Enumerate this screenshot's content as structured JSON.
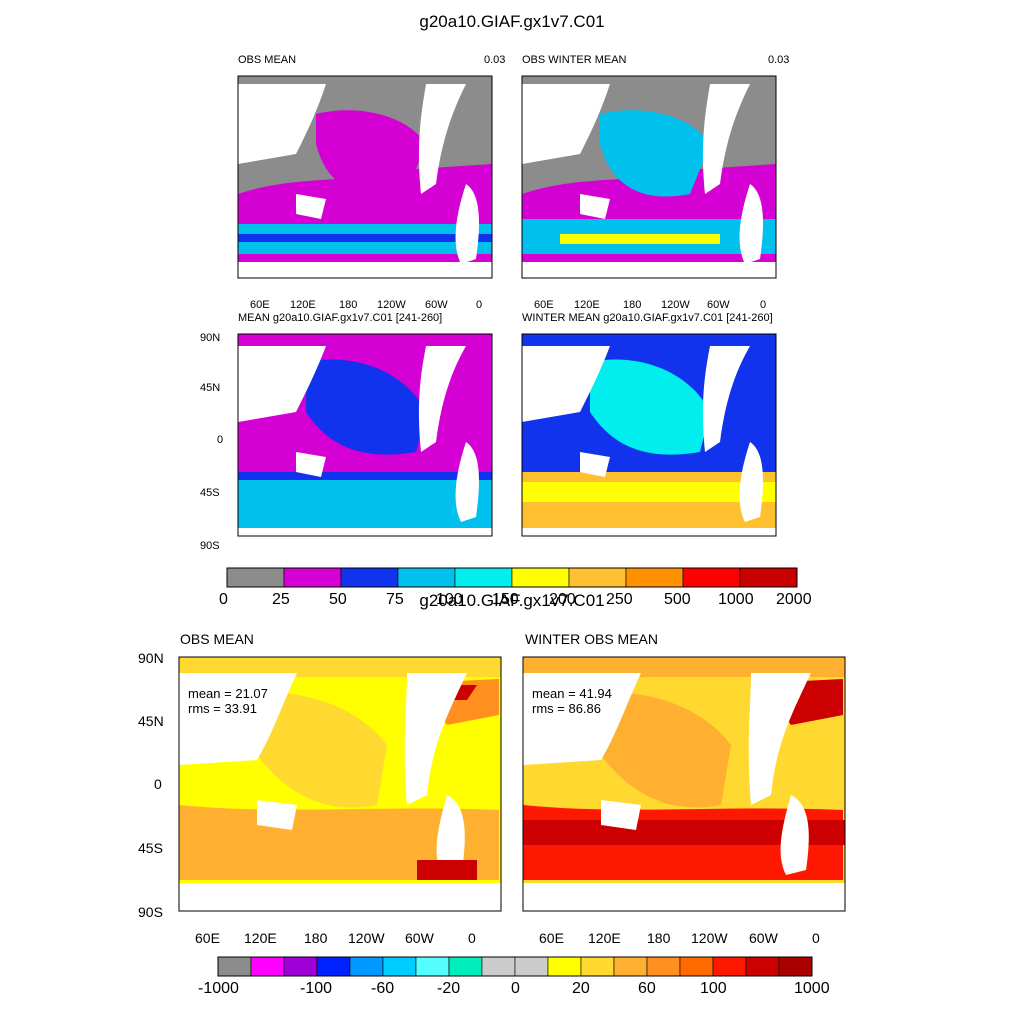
{
  "figure1": {
    "title": "g20a10.GIAF.gx1v7.C01",
    "panels": [
      {
        "title": "OBS MEAN",
        "scale": "0.03"
      },
      {
        "title": "OBS WINTER MEAN",
        "scale": "0.03"
      },
      {
        "title": "MEAN g20a10.GIAF.gx1v7.C01 [241-260]"
      },
      {
        "title": "WINTER MEAN g20a10.GIAF.gx1v7.C01 [241-260]"
      }
    ],
    "lon_labels": [
      "60E",
      "120E",
      "180",
      "120W",
      "60W",
      "0"
    ],
    "lat_labels": [
      "90N",
      "45N",
      "0",
      "45S",
      "90S"
    ],
    "colorbar": {
      "colors": [
        "#8c8c8c",
        "#d400d4",
        "#1133ee",
        "#00c0ee",
        "#00eeee",
        "#ffff00",
        "#ffc030",
        "#ff9000",
        "#ff0000",
        "#c80000"
      ],
      "labels": [
        "0",
        "25",
        "50",
        "75",
        "100",
        "150",
        "200",
        "250",
        "500",
        "1000",
        "2000"
      ]
    }
  },
  "figure2": {
    "title": "g20a10.GIAF.gx1v7.C01",
    "panels": [
      {
        "title": "OBS MEAN",
        "mean": "mean = 21.07",
        "rms": "rms = 33.91"
      },
      {
        "title": "WINTER OBS MEAN",
        "mean": "mean = 41.94",
        "rms": "rms = 86.86"
      }
    ],
    "lon_labels": [
      "60E",
      "120E",
      "180",
      "120W",
      "60W",
      "0"
    ],
    "lat_labels": [
      "90N",
      "45N",
      "0",
      "45S",
      "90S"
    ],
    "colorbar": {
      "colors": [
        "#8c8c8c",
        "#ff00ff",
        "#a000d8",
        "#0022ff",
        "#0099ff",
        "#00ccff",
        "#55ffff",
        "#00eebb",
        "#cccccc",
        "#cccccc",
        "#ffff00",
        "#ffd830",
        "#ffb030",
        "#ff9020",
        "#ff6a00",
        "#ff1800",
        "#cc0000",
        "#aa0000"
      ],
      "labels": [
        "-1000",
        "-100",
        "-60",
        "-20",
        "0",
        "20",
        "60",
        "100",
        "1000"
      ]
    }
  },
  "icons": [
    "map-land-mask-icon"
  ]
}
